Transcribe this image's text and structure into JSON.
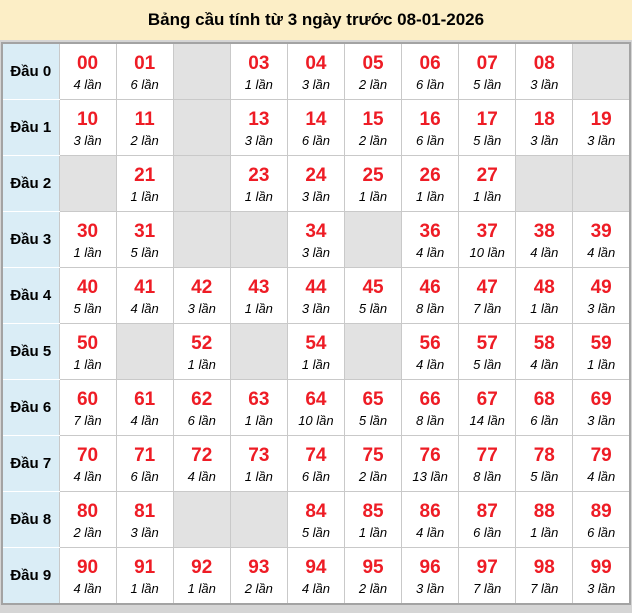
{
  "title": "Bảng cầu tính từ 3 ngày trước 08-01-2026",
  "colors": {
    "page_bg": "#d5d5d5",
    "title_bg": "#fceec6",
    "row_header_bg": "#daedf6",
    "empty_cell_bg": "#e2e2e2",
    "number_red": "#ee1c25",
    "cell_border": "#c9c9c9",
    "outer_border": "#a3a3a3"
  },
  "table": {
    "rows": [
      {
        "label": "Đầu 0",
        "cells": [
          {
            "num": "00",
            "times": "4 lần"
          },
          {
            "num": "01",
            "times": "6 lần"
          },
          null,
          {
            "num": "03",
            "times": "1 lần"
          },
          {
            "num": "04",
            "times": "3 lần"
          },
          {
            "num": "05",
            "times": "2 lần"
          },
          {
            "num": "06",
            "times": "6 lần"
          },
          {
            "num": "07",
            "times": "5 lần"
          },
          {
            "num": "08",
            "times": "3 lần"
          },
          null
        ]
      },
      {
        "label": "Đầu 1",
        "cells": [
          {
            "num": "10",
            "times": "3 lần"
          },
          {
            "num": "11",
            "times": "2 lần"
          },
          null,
          {
            "num": "13",
            "times": "3 lần"
          },
          {
            "num": "14",
            "times": "6 lần"
          },
          {
            "num": "15",
            "times": "2 lần"
          },
          {
            "num": "16",
            "times": "6 lần"
          },
          {
            "num": "17",
            "times": "5 lần"
          },
          {
            "num": "18",
            "times": "3 lần"
          },
          {
            "num": "19",
            "times": "3 lần"
          }
        ]
      },
      {
        "label": "Đầu 2",
        "cells": [
          null,
          {
            "num": "21",
            "times": "1 lần"
          },
          null,
          {
            "num": "23",
            "times": "1 lần"
          },
          {
            "num": "24",
            "times": "3 lần"
          },
          {
            "num": "25",
            "times": "1 lần"
          },
          {
            "num": "26",
            "times": "1 lần"
          },
          {
            "num": "27",
            "times": "1 lần"
          },
          null,
          null
        ]
      },
      {
        "label": "Đầu 3",
        "cells": [
          {
            "num": "30",
            "times": "1 lần"
          },
          {
            "num": "31",
            "times": "5 lần"
          },
          null,
          null,
          {
            "num": "34",
            "times": "3 lần"
          },
          null,
          {
            "num": "36",
            "times": "4 lần"
          },
          {
            "num": "37",
            "times": "10 lần"
          },
          {
            "num": "38",
            "times": "4 lần"
          },
          {
            "num": "39",
            "times": "4 lần"
          }
        ]
      },
      {
        "label": "Đầu 4",
        "cells": [
          {
            "num": "40",
            "times": "5 lần"
          },
          {
            "num": "41",
            "times": "4 lần"
          },
          {
            "num": "42",
            "times": "3 lần"
          },
          {
            "num": "43",
            "times": "1 lần"
          },
          {
            "num": "44",
            "times": "3 lần"
          },
          {
            "num": "45",
            "times": "5 lần"
          },
          {
            "num": "46",
            "times": "8 lần"
          },
          {
            "num": "47",
            "times": "7 lần"
          },
          {
            "num": "48",
            "times": "1 lần"
          },
          {
            "num": "49",
            "times": "3 lần"
          }
        ]
      },
      {
        "label": "Đầu 5",
        "cells": [
          {
            "num": "50",
            "times": "1 lần"
          },
          null,
          {
            "num": "52",
            "times": "1 lần"
          },
          null,
          {
            "num": "54",
            "times": "1 lần"
          },
          null,
          {
            "num": "56",
            "times": "4 lần"
          },
          {
            "num": "57",
            "times": "5 lần"
          },
          {
            "num": "58",
            "times": "4 lần"
          },
          {
            "num": "59",
            "times": "1 lần"
          }
        ]
      },
      {
        "label": "Đầu 6",
        "cells": [
          {
            "num": "60",
            "times": "7 lần"
          },
          {
            "num": "61",
            "times": "4 lần"
          },
          {
            "num": "62",
            "times": "6 lần"
          },
          {
            "num": "63",
            "times": "1 lần"
          },
          {
            "num": "64",
            "times": "10 lần"
          },
          {
            "num": "65",
            "times": "5 lần"
          },
          {
            "num": "66",
            "times": "8 lần"
          },
          {
            "num": "67",
            "times": "14 lần"
          },
          {
            "num": "68",
            "times": "6 lần"
          },
          {
            "num": "69",
            "times": "3 lần"
          }
        ]
      },
      {
        "label": "Đầu 7",
        "cells": [
          {
            "num": "70",
            "times": "4 lần"
          },
          {
            "num": "71",
            "times": "6 lần"
          },
          {
            "num": "72",
            "times": "4 lần"
          },
          {
            "num": "73",
            "times": "1 lần"
          },
          {
            "num": "74",
            "times": "6 lần"
          },
          {
            "num": "75",
            "times": "2 lần"
          },
          {
            "num": "76",
            "times": "13 lần"
          },
          {
            "num": "77",
            "times": "8 lần"
          },
          {
            "num": "78",
            "times": "5 lần"
          },
          {
            "num": "79",
            "times": "4 lần"
          }
        ]
      },
      {
        "label": "Đầu 8",
        "cells": [
          {
            "num": "80",
            "times": "2 lần"
          },
          {
            "num": "81",
            "times": "3 lần"
          },
          null,
          null,
          {
            "num": "84",
            "times": "5 lần"
          },
          {
            "num": "85",
            "times": "1 lần"
          },
          {
            "num": "86",
            "times": "4 lần"
          },
          {
            "num": "87",
            "times": "6 lần"
          },
          {
            "num": "88",
            "times": "1 lần"
          },
          {
            "num": "89",
            "times": "6 lần"
          }
        ]
      },
      {
        "label": "Đầu 9",
        "cells": [
          {
            "num": "90",
            "times": "4 lần"
          },
          {
            "num": "91",
            "times": "1 lần"
          },
          {
            "num": "92",
            "times": "1 lần"
          },
          {
            "num": "93",
            "times": "2 lần"
          },
          {
            "num": "94",
            "times": "4 lần"
          },
          {
            "num": "95",
            "times": "2 lần"
          },
          {
            "num": "96",
            "times": "3 lần"
          },
          {
            "num": "97",
            "times": "7 lần"
          },
          {
            "num": "98",
            "times": "7 lần"
          },
          {
            "num": "99",
            "times": "3 lần"
          }
        ]
      }
    ]
  }
}
